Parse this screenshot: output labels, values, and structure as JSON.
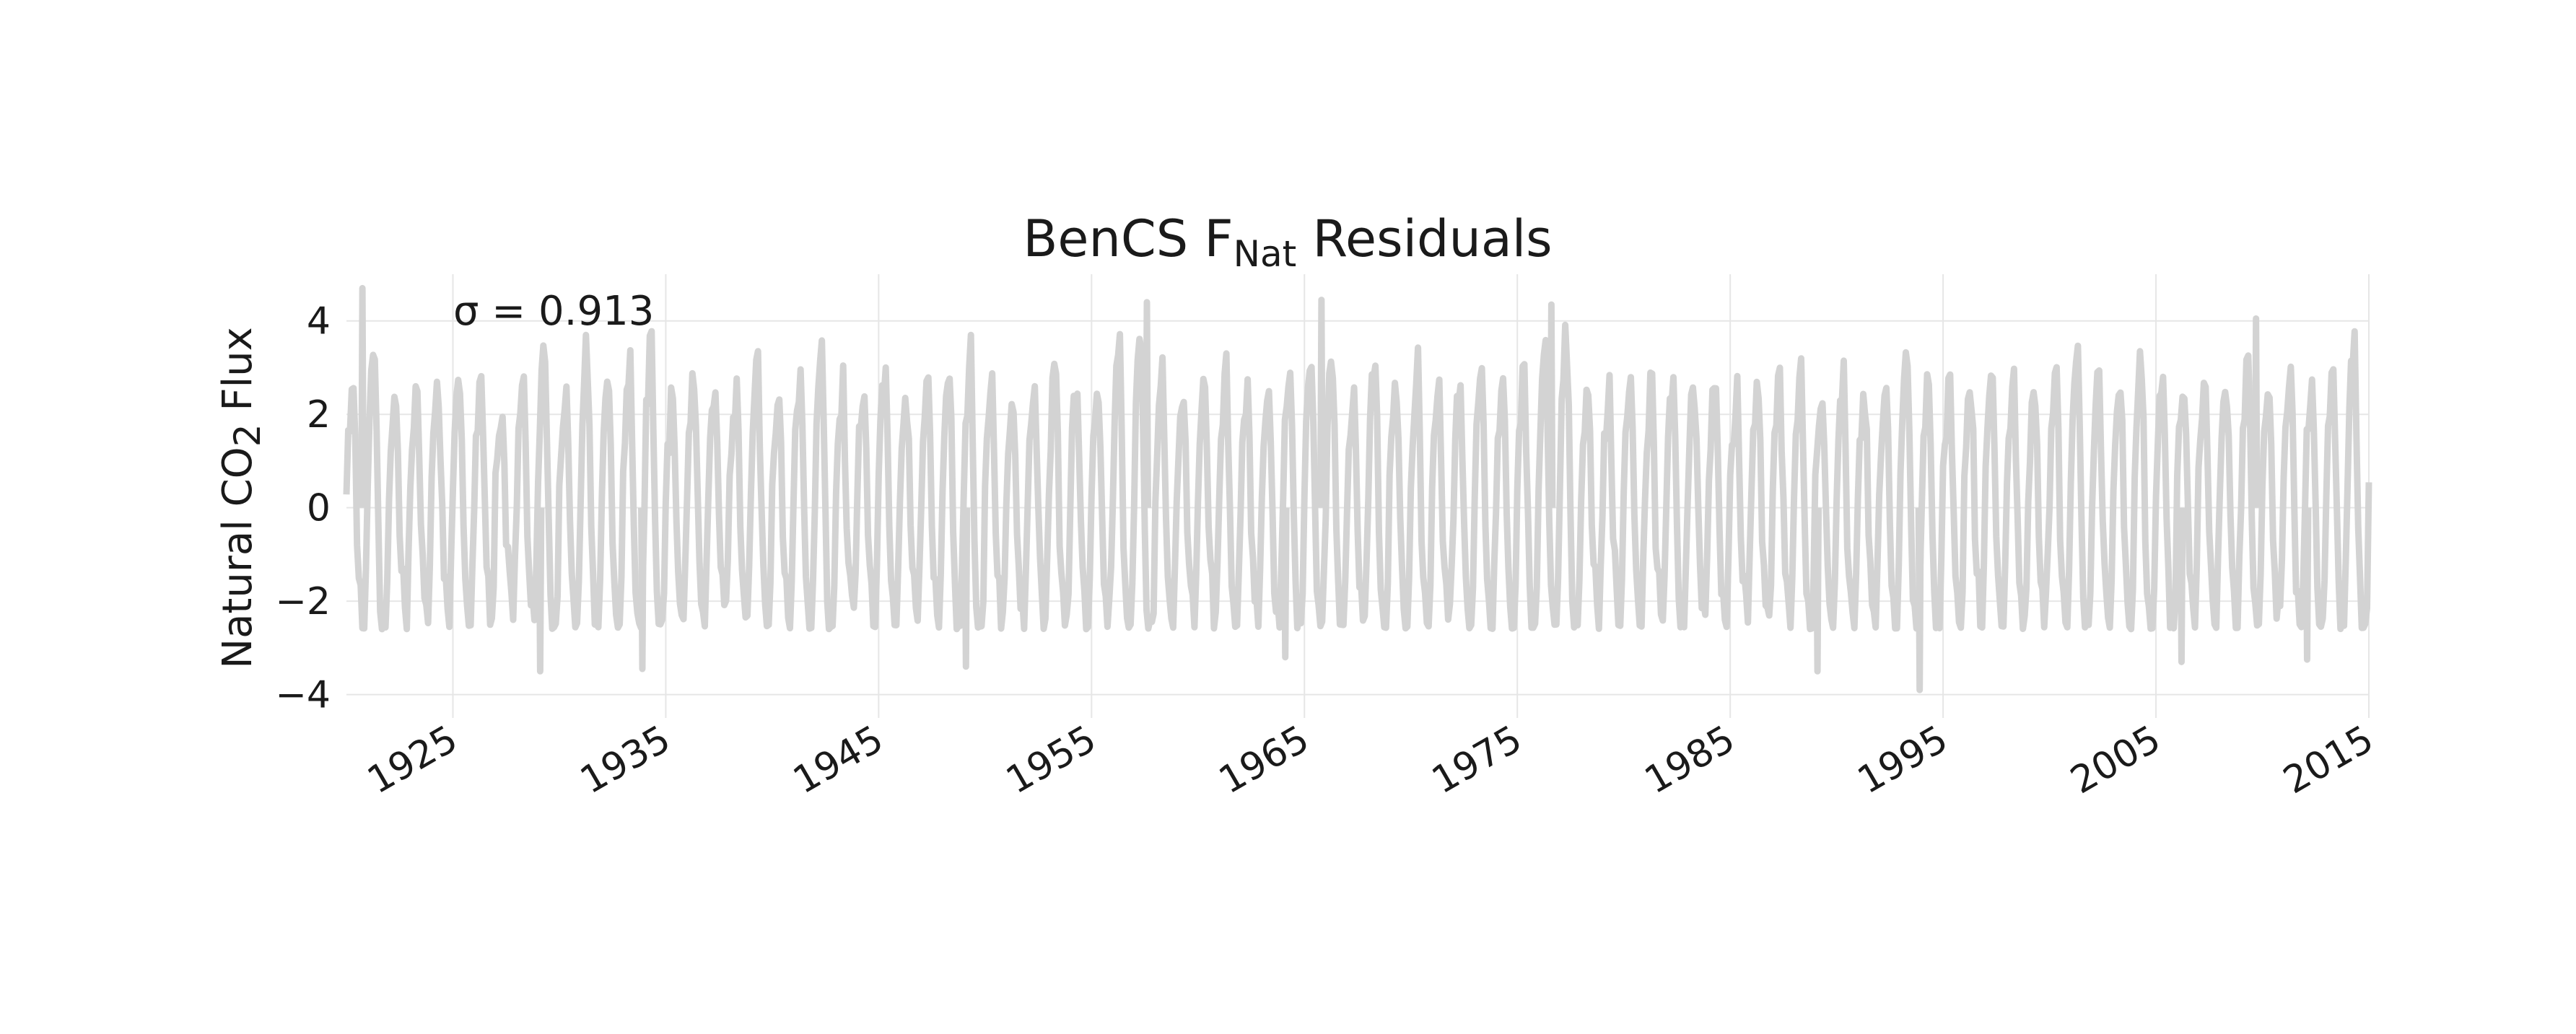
{
  "chart_data": {
    "type": "line",
    "title": {
      "prefix": "BenCS F",
      "subscript": "Nat",
      "suffix": " Residuals"
    },
    "ylabel": {
      "prefix": "Natural CO",
      "subscript": "2",
      "suffix": " Flux"
    },
    "xlabel": "",
    "annotation": "σ = 0.913",
    "x_ticks": [
      "1925",
      "1935",
      "1945",
      "1955",
      "1965",
      "1975",
      "1985",
      "1995",
      "2005",
      "2015"
    ],
    "y_ticks": [
      "4",
      "2",
      "0",
      "−2",
      "−4"
    ],
    "xlim": [
      1920,
      2015
    ],
    "ylim": [
      -4.5,
      5.0
    ],
    "grid": true,
    "series": [
      {
        "color": "#d3d3d3",
        "sampling": "monthly",
        "x_start": 1920.0,
        "x_end": 2015.0,
        "annual_cycle_amplitude_by_year": [
          2.6,
          3.4,
          2.2,
          2.3,
          2.5,
          2.9,
          2.6,
          2.1,
          2.5,
          3.4,
          2.6,
          3.3,
          2.9,
          3.1,
          3.6,
          2.3,
          2.6,
          2.2,
          2.4,
          2.9,
          2.3,
          2.7,
          3.6,
          2.4,
          2.6,
          2.9,
          2.5,
          2.7,
          3.0,
          3.3,
          2.6,
          2.3,
          2.5,
          2.9,
          2.7,
          2.6,
          3.1,
          3.9,
          2.7,
          2.3,
          2.6,
          3.0,
          2.4,
          2.6,
          3.0,
          3.4,
          3.3,
          2.5,
          3.1,
          2.8,
          2.9,
          2.4,
          2.6,
          3.0,
          2.7,
          2.9,
          3.3,
          3.8,
          2.4,
          2.4,
          2.6,
          2.5,
          2.9,
          2.4,
          2.6,
          2.3,
          2.6,
          2.5,
          2.8,
          2.6,
          2.7,
          2.4,
          2.6,
          3.2,
          2.9,
          2.7,
          2.5,
          2.9,
          2.6,
          2.4,
          2.8,
          3.3,
          2.6,
          2.8,
          3.0,
          3.1,
          2.7,
          2.5,
          2.6,
          3.0,
          2.6,
          3.0,
          2.7,
          2.8,
          3.5
        ],
        "peak_outliers": [
          {
            "x": 1920.75,
            "y": 4.7
          },
          {
            "x": 1957.6,
            "y": 4.4
          },
          {
            "x": 1965.8,
            "y": 4.45
          },
          {
            "x": 1976.6,
            "y": 4.35
          },
          {
            "x": 2009.7,
            "y": 4.05
          }
        ],
        "trough_outliers": [
          {
            "x": 1929.1,
            "y": -3.5
          },
          {
            "x": 1933.9,
            "y": -3.45
          },
          {
            "x": 1949.1,
            "y": -3.4
          },
          {
            "x": 1964.1,
            "y": -3.2
          },
          {
            "x": 1989.1,
            "y": -3.5
          },
          {
            "x": 1993.9,
            "y": -3.9
          },
          {
            "x": 2006.2,
            "y": -3.3
          },
          {
            "x": 2012.1,
            "y": -3.25
          }
        ]
      }
    ]
  }
}
